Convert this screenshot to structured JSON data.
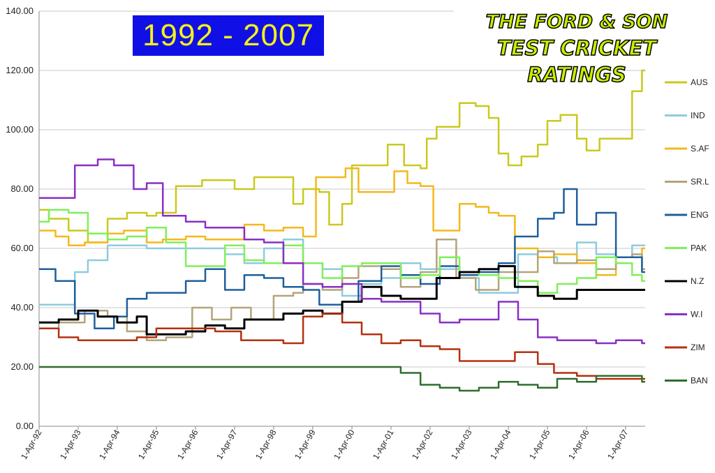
{
  "title_badge": "1992 - 2007",
  "brand": {
    "line1": "THE FORD & SON",
    "line2": "TEST CRICKET RATINGS"
  },
  "colors": {
    "badge_bg": "#1010e6",
    "badge_text": "#f5f11a",
    "brand_text": "#c8ef00",
    "AUS": "#c9c91e",
    "IND": "#8ecbde",
    "S.AF": "#f4b81c",
    "SR.L": "#b3a47a",
    "ENG": "#1f5f9c",
    "PAK": "#7ff05a",
    "N.Z": "#000000",
    "W.I": "#8a2fc4",
    "ZIM": "#b5300f",
    "BAN": "#2f6e2c"
  },
  "chart_data": {
    "type": "line",
    "ylim": [
      0,
      140
    ],
    "y_ticks": [
      "0.00",
      "20.00",
      "40.00",
      "60.00",
      "80.00",
      "100.00",
      "120.00",
      "140.00"
    ],
    "xlim": [
      "1992-04-01",
      "2007-10-01"
    ],
    "x_ticks": [
      "1-Apr-92",
      "1-Apr-93",
      "1-Apr-94",
      "1-Apr-95",
      "1-Apr-96",
      "1-Apr-97",
      "1-Apr-98",
      "1-Apr-99",
      "1-Apr-00",
      "1-Apr-01",
      "1-Apr-02",
      "1-Apr-03",
      "1-Apr-04",
      "1-Apr-05",
      "1-Apr-06",
      "1-Apr-07"
    ],
    "x_tick_dates": [
      "1992-04-01",
      "1993-04-01",
      "1994-04-01",
      "1995-04-01",
      "1996-04-01",
      "1997-04-01",
      "1998-04-01",
      "1999-04-01",
      "2000-04-01",
      "2001-04-01",
      "2002-04-01",
      "2003-04-01",
      "2004-04-01",
      "2005-04-01",
      "2006-04-01",
      "2007-04-01"
    ],
    "grid": "horizontal",
    "legend": "right",
    "series": [
      {
        "name": "AUS",
        "x": [
          "1992-04-01",
          "1992-07-01",
          "1993-01-01",
          "1993-07-01",
          "1994-01-01",
          "1994-07-01",
          "1995-01-01",
          "1995-04-01",
          "1995-10-01",
          "1996-06-01",
          "1997-01-01",
          "1997-04-01",
          "1997-10-01",
          "1998-04-01",
          "1998-10-01",
          "1999-01-01",
          "1999-06-01",
          "1999-09-01",
          "2000-01-01",
          "2000-04-01",
          "2000-10-01",
          "2001-03-01",
          "2001-08-01",
          "2002-01-01",
          "2002-03-01",
          "2002-06-01",
          "2002-09-01",
          "2003-01-01",
          "2003-06-01",
          "2003-10-01",
          "2004-01-01",
          "2004-04-01",
          "2004-08-01",
          "2005-01-01",
          "2005-04-01",
          "2005-08-01",
          "2006-01-01",
          "2006-04-01",
          "2006-08-01",
          "2007-01-01",
          "2007-06-01",
          "2007-09-01"
        ],
        "y": [
          73,
          70,
          66,
          62,
          70,
          72,
          71,
          72,
          81,
          83,
          83,
          80,
          84,
          84,
          75,
          80,
          79,
          68,
          75,
          88,
          88,
          95,
          88,
          87,
          97,
          101,
          101,
          109,
          108,
          104,
          92,
          88,
          91,
          95,
          103,
          105,
          97,
          93,
          97,
          97,
          113,
          120
        ]
      },
      {
        "name": "IND",
        "x": [
          "1992-04-01",
          "1992-10-01",
          "1993-03-01",
          "1993-07-01",
          "1994-01-01",
          "1994-07-01",
          "1995-01-01",
          "1995-10-01",
          "1996-07-01",
          "1997-01-01",
          "1997-07-01",
          "1998-01-01",
          "1998-07-01",
          "1999-01-01",
          "1999-07-01",
          "2000-01-01",
          "2000-07-01",
          "2001-01-01",
          "2001-07-01",
          "2002-01-01",
          "2002-07-01",
          "2003-01-01",
          "2003-07-01",
          "2004-01-01",
          "2004-07-01",
          "2005-01-01",
          "2005-07-01",
          "2006-01-01",
          "2006-07-01",
          "2007-01-01",
          "2007-06-01",
          "2007-09-01"
        ],
        "y": [
          41,
          41,
          52,
          56,
          61,
          61,
          60,
          60,
          60,
          58,
          55,
          60,
          63,
          55,
          53,
          44,
          48,
          50,
          55,
          53,
          53,
          50,
          45,
          45,
          58,
          57,
          55,
          62,
          58,
          57,
          61,
          61
        ]
      },
      {
        "name": "S.AF",
        "x": [
          "1992-04-01",
          "1992-09-01",
          "1993-01-01",
          "1993-06-01",
          "1994-01-01",
          "1994-06-01",
          "1995-01-01",
          "1995-06-01",
          "1996-01-01",
          "1996-07-01",
          "1997-01-01",
          "1997-07-01",
          "1998-01-01",
          "1998-07-01",
          "1999-01-01",
          "1999-05-01",
          "1999-10-01",
          "2000-02-01",
          "2000-06-01",
          "2001-01-01",
          "2001-05-01",
          "2001-09-01",
          "2002-01-01",
          "2002-05-01",
          "2002-09-01",
          "2003-01-01",
          "2003-06-01",
          "2003-10-01",
          "2004-01-01",
          "2004-06-01",
          "2005-01-01",
          "2005-06-01",
          "2006-01-01",
          "2006-07-01",
          "2007-01-01",
          "2007-09-01"
        ],
        "y": [
          66,
          64,
          61,
          62,
          65,
          66,
          62,
          63,
          64,
          63,
          63,
          68,
          66,
          67,
          64,
          84,
          84,
          87,
          79,
          79,
          86,
          82,
          81,
          66,
          66,
          75,
          74,
          72,
          71,
          60,
          57,
          58,
          55,
          51,
          57,
          60
        ]
      },
      {
        "name": "SR.L",
        "x": [
          "1992-04-01",
          "1992-10-01",
          "1993-06-01",
          "1994-01-01",
          "1994-07-01",
          "1995-01-01",
          "1995-07-01",
          "1996-03-01",
          "1996-09-01",
          "1997-03-01",
          "1997-09-01",
          "1998-04-01",
          "1998-10-01",
          "1999-01-01",
          "1999-07-01",
          "2000-01-01",
          "2000-06-01",
          "2001-01-01",
          "2001-07-01",
          "2002-01-01",
          "2002-06-01",
          "2002-12-01",
          "2003-06-01",
          "2004-01-01",
          "2004-06-01",
          "2005-01-01",
          "2005-06-01",
          "2006-01-01",
          "2006-07-01",
          "2007-01-01",
          "2007-06-01",
          "2007-09-01"
        ],
        "y": [
          33,
          35,
          39,
          37,
          32,
          29,
          30,
          40,
          36,
          40,
          36,
          44,
          45,
          48,
          46,
          50,
          54,
          53,
          47,
          52,
          63,
          50,
          46,
          52,
          52,
          59,
          55,
          56,
          53,
          57,
          58,
          53
        ]
      },
      {
        "name": "ENG",
        "x": [
          "1992-04-01",
          "1992-09-01",
          "1993-03-01",
          "1993-09-01",
          "1994-03-01",
          "1994-07-01",
          "1995-01-01",
          "1995-07-01",
          "1996-01-01",
          "1996-07-01",
          "1997-01-01",
          "1997-07-01",
          "1998-01-01",
          "1998-07-01",
          "1999-01-01",
          "1999-06-01",
          "2000-01-01",
          "2000-06-01",
          "2001-01-01",
          "2001-07-01",
          "2002-01-01",
          "2002-07-01",
          "2003-01-01",
          "2003-07-01",
          "2004-01-01",
          "2004-06-01",
          "2005-01-01",
          "2005-06-01",
          "2005-09-01",
          "2006-01-01",
          "2006-07-01",
          "2007-01-01",
          "2007-06-01",
          "2007-09-01"
        ],
        "y": [
          53,
          49,
          38,
          33,
          37,
          43,
          45,
          45,
          49,
          53,
          46,
          51,
          50,
          47,
          46,
          41,
          42,
          49,
          54,
          51,
          48,
          54,
          51,
          52,
          55,
          64,
          70,
          72,
          80,
          68,
          72,
          57,
          57,
          52
        ]
      },
      {
        "name": "PAK",
        "x": [
          "1992-04-01",
          "1992-07-01",
          "1993-01-01",
          "1993-07-01",
          "1994-01-01",
          "1994-07-01",
          "1995-01-01",
          "1995-07-01",
          "1996-01-01",
          "1996-07-01",
          "1997-01-01",
          "1997-07-01",
          "1998-01-01",
          "1998-07-01",
          "1999-01-01",
          "1999-07-01",
          "2000-01-01",
          "2000-07-01",
          "2001-01-01",
          "2001-07-01",
          "2002-01-01",
          "2002-07-01",
          "2003-01-01",
          "2003-07-01",
          "2004-01-01",
          "2004-07-01",
          "2005-01-01",
          "2005-07-01",
          "2006-01-01",
          "2006-07-01",
          "2007-01-01",
          "2007-06-01",
          "2007-09-01"
        ],
        "y": [
          69,
          73,
          72,
          65,
          63,
          64,
          67,
          62,
          54,
          54,
          61,
          56,
          55,
          61,
          55,
          50,
          54,
          55,
          55,
          50,
          51,
          57,
          52,
          51,
          50,
          49,
          45,
          48,
          50,
          57,
          55,
          51,
          49
        ]
      },
      {
        "name": "N.Z",
        "x": [
          "1992-04-01",
          "1992-10-01",
          "1993-04-01",
          "1993-10-01",
          "1994-04-01",
          "1994-10-01",
          "1995-01-01",
          "1995-07-01",
          "1996-01-01",
          "1996-07-01",
          "1997-01-01",
          "1997-07-01",
          "1998-01-01",
          "1998-07-01",
          "1999-01-01",
          "1999-07-01",
          "2000-01-01",
          "2000-07-01",
          "2001-01-01",
          "2001-07-01",
          "2002-01-01",
          "2002-06-01",
          "2003-01-01",
          "2003-07-01",
          "2004-01-01",
          "2004-06-01",
          "2005-01-01",
          "2005-06-01",
          "2006-01-01",
          "2006-07-01",
          "2007-01-01",
          "2007-09-01"
        ],
        "y": [
          35,
          36,
          39,
          37,
          35,
          37,
          31,
          31,
          32,
          34,
          33,
          36,
          36,
          38,
          39,
          38,
          42,
          47,
          44,
          43,
          43,
          50,
          52,
          53,
          54,
          47,
          44,
          43,
          46,
          46,
          46,
          46
        ]
      },
      {
        "name": "W.I",
        "x": [
          "1992-04-01",
          "1992-10-01",
          "1993-03-01",
          "1993-10-01",
          "1994-03-01",
          "1994-09-01",
          "1995-01-01",
          "1995-06-01",
          "1996-01-01",
          "1996-07-01",
          "1997-01-01",
          "1997-07-01",
          "1998-01-01",
          "1998-07-01",
          "1999-01-01",
          "1999-07-01",
          "2000-01-01",
          "2000-07-01",
          "2001-01-01",
          "2001-07-01",
          "2002-01-01",
          "2002-07-01",
          "2003-01-01",
          "2003-07-01",
          "2004-01-01",
          "2004-07-01",
          "2005-01-01",
          "2005-07-01",
          "2006-01-01",
          "2006-07-01",
          "2007-01-01",
          "2007-09-01"
        ],
        "y": [
          77,
          77,
          88,
          90,
          88,
          80,
          82,
          71,
          69,
          67,
          67,
          63,
          62,
          55,
          48,
          47,
          48,
          43,
          42,
          42,
          38,
          35,
          36,
          36,
          42,
          36,
          30,
          29,
          29,
          28,
          29,
          28
        ]
      },
      {
        "name": "ZIM",
        "x": [
          "1992-04-01",
          "1992-10-01",
          "1993-04-01",
          "1994-01-01",
          "1994-10-01",
          "1995-04-01",
          "1996-01-01",
          "1996-10-01",
          "1997-06-01",
          "1998-01-01",
          "1998-07-01",
          "1999-01-01",
          "1999-07-01",
          "2000-01-01",
          "2000-07-01",
          "2001-01-01",
          "2001-07-01",
          "2002-01-01",
          "2002-07-01",
          "2003-01-01",
          "2003-07-01",
          "2004-01-01",
          "2004-06-01",
          "2005-01-01",
          "2005-06-01",
          "2006-01-01",
          "2006-07-01",
          "2007-01-01",
          "2007-09-01"
        ],
        "y": [
          33,
          30,
          29,
          29,
          30,
          33,
          33,
          32,
          29,
          29,
          28,
          37,
          38,
          35,
          31,
          28,
          29,
          27,
          26,
          22,
          22,
          22,
          25,
          21,
          18,
          17,
          16,
          16,
          16
        ]
      },
      {
        "name": "BAN",
        "x": [
          "1992-04-01",
          "1998-01-01",
          "2001-01-01",
          "2001-07-01",
          "2002-01-01",
          "2002-07-01",
          "2003-01-01",
          "2003-07-01",
          "2004-01-01",
          "2004-07-01",
          "2005-01-01",
          "2005-07-01",
          "2006-01-01",
          "2006-07-01",
          "2007-01-01",
          "2007-09-01"
        ],
        "y": [
          20,
          20,
          20,
          18,
          14,
          13,
          12,
          13,
          15,
          14,
          13,
          16,
          15,
          17,
          17,
          15
        ]
      }
    ]
  }
}
